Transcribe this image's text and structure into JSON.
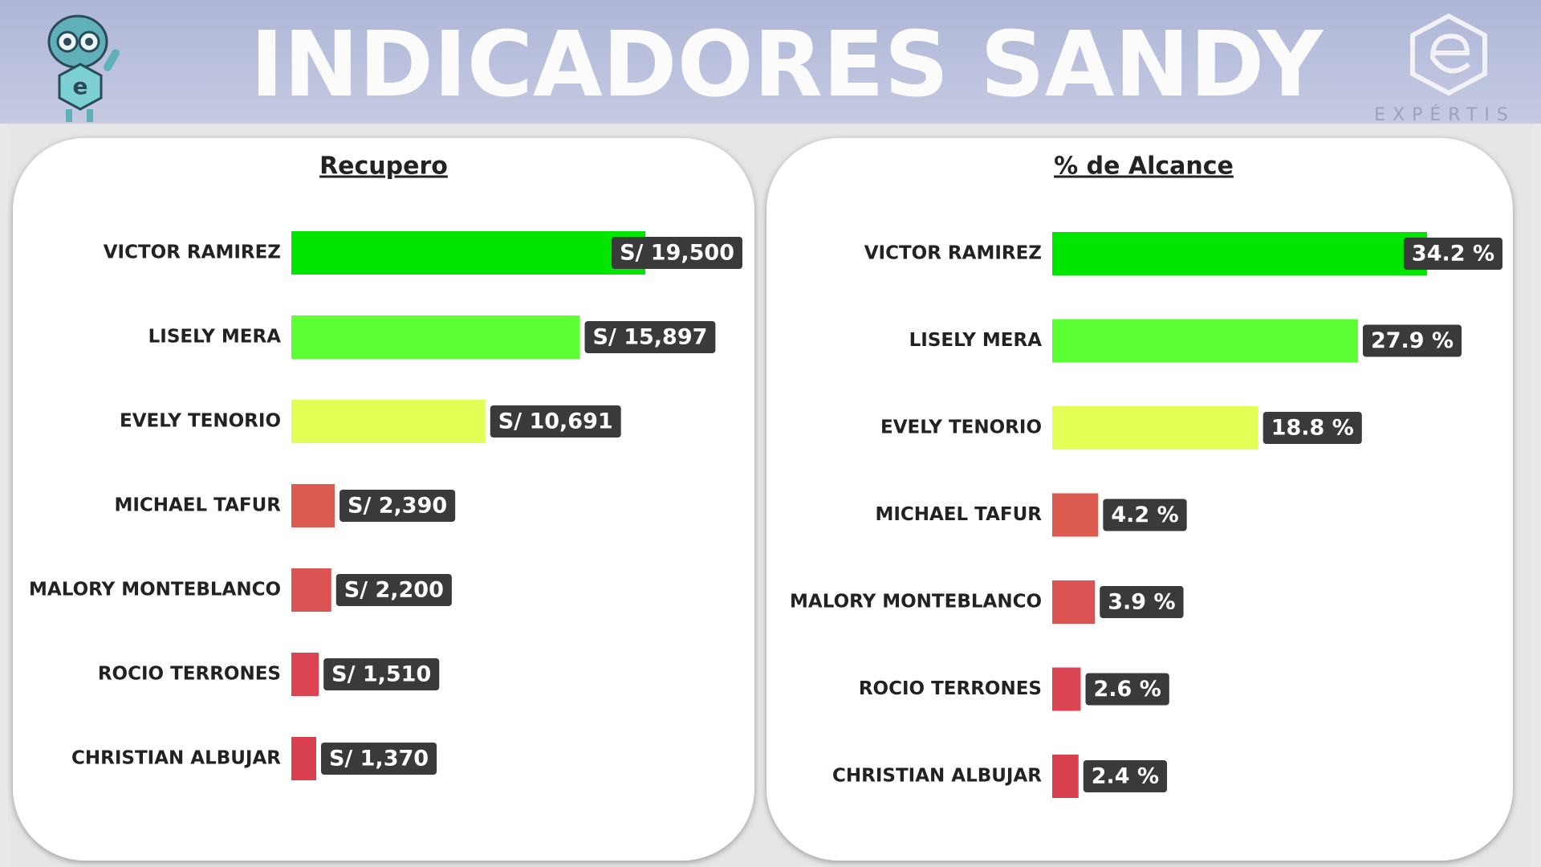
{
  "header": {
    "title": "INDICADORES SANDY",
    "logo_text": "EXPÉRTIS"
  },
  "chart_data": [
    {
      "type": "bar",
      "orientation": "horizontal",
      "title": "Recupero",
      "categories": [
        "VICTOR RAMIREZ",
        "LISELY MERA",
        "EVELY TENORIO",
        "MICHAEL TAFUR",
        "MALORY MONTEBLANCO",
        "ROCIO TERRONES",
        "CHRISTIAN ALBUJAR"
      ],
      "values": [
        19500,
        15897,
        10691,
        2390,
        2200,
        1510,
        1370
      ],
      "value_labels": [
        "S/ 19,500",
        "S/ 15,897",
        "S/ 10,691",
        "S/ 2,390",
        "S/ 2,200",
        "S/ 1,510",
        "S/ 1,370"
      ],
      "colors": [
        "#00e600",
        "#5cff33",
        "#e2ff55",
        "#dd5c52",
        "#db5352",
        "#da4453",
        "#d9404e"
      ]
    },
    {
      "type": "bar",
      "orientation": "horizontal",
      "title": "% de Alcance",
      "categories": [
        "VICTOR RAMIREZ",
        "LISELY MERA",
        "EVELY TENORIO",
        "MICHAEL TAFUR",
        "MALORY MONTEBLANCO",
        "ROCIO TERRONES",
        "CHRISTIAN ALBUJAR"
      ],
      "values": [
        34.2,
        27.9,
        18.8,
        4.2,
        3.9,
        2.6,
        2.4
      ],
      "value_labels": [
        "34.2 %",
        "27.9 %",
        "18.8 %",
        "4.2 %",
        "3.9 %",
        "2.6 %",
        "2.4 %"
      ],
      "colors": [
        "#00e600",
        "#5cff33",
        "#e2ff55",
        "#dd5c52",
        "#db5352",
        "#da4453",
        "#d9404e"
      ]
    }
  ]
}
